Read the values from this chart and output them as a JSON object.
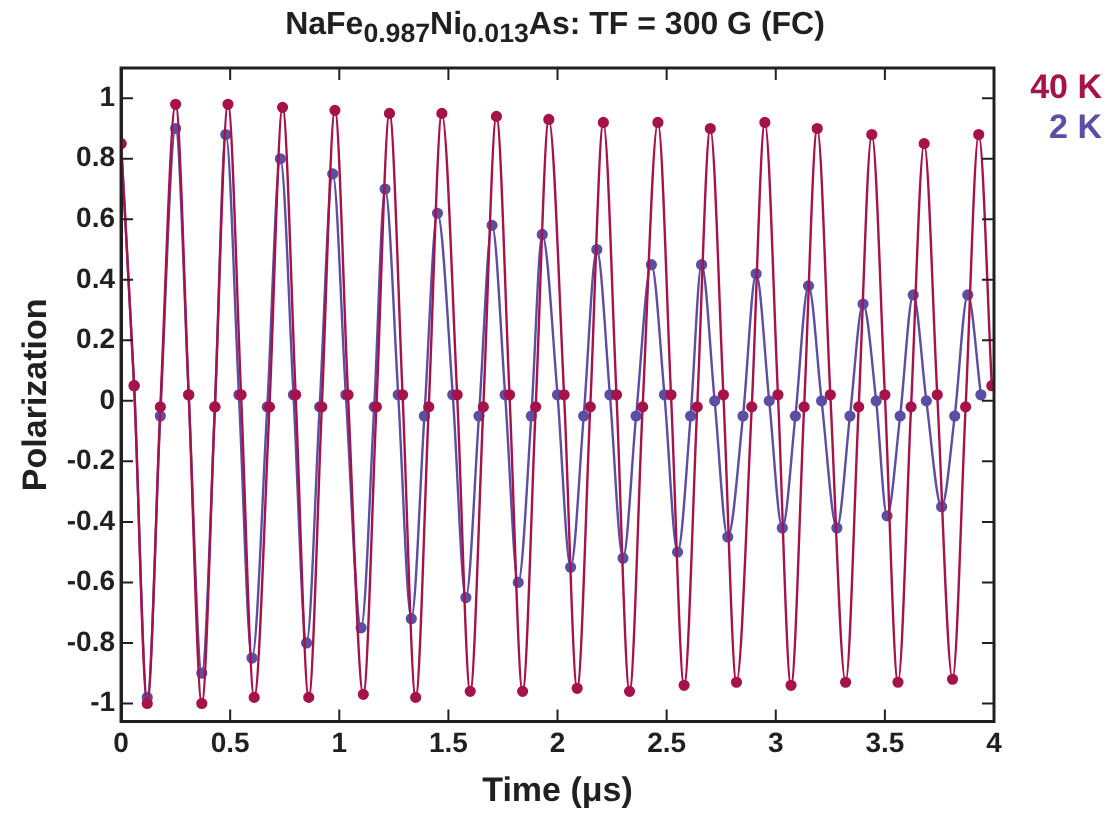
{
  "chart_data": {
    "type": "line",
    "title": "NaFe$_{0.987}$Ni$_{0.013}$As: TF = 300 G (FC)",
    "xlabel": "Time (μs)",
    "ylabel": "Polarization",
    "xlim": [
      0,
      4
    ],
    "xticks": [
      0,
      0.5,
      1,
      1.5,
      2,
      2.5,
      3,
      3.5,
      4
    ],
    "ylim": [
      -1.06,
      1.1
    ],
    "yticks": [
      -1,
      -0.8,
      -0.6,
      -0.4,
      -0.2,
      0,
      0.2,
      0.4,
      0.6,
      0.8,
      1
    ],
    "grid": false,
    "legend": "top right",
    "marker": "circle",
    "line_style": "solid",
    "series": [
      {
        "name": "40 K",
        "color": "#a6124a",
        "x": [
          0,
          0.06,
          0.12,
          0.18,
          0.25,
          0.31,
          0.37,
          0.43,
          0.49,
          0.55,
          0.61,
          0.68,
          0.74,
          0.8,
          0.86,
          0.92,
          0.98,
          1.04,
          1.11,
          1.17,
          1.23,
          1.29,
          1.35,
          1.41,
          1.47,
          1.54,
          1.6,
          1.66,
          1.72,
          1.78,
          1.84,
          1.9,
          1.96,
          2.03,
          2.09,
          2.15,
          2.21,
          2.27,
          2.33,
          2.39,
          2.46,
          2.52,
          2.58,
          2.64,
          2.7,
          2.76,
          2.82,
          2.89,
          2.95,
          3.01,
          3.07,
          3.13,
          3.19,
          3.25,
          3.32,
          3.38,
          3.44,
          3.5,
          3.56,
          3.62,
          3.68,
          3.74,
          3.81,
          3.87,
          3.93,
          3.99
        ],
        "values": [
          0.85,
          0.05,
          -1,
          -0.02,
          0.98,
          0.02,
          -1,
          -0.02,
          0.98,
          0.02,
          -0.98,
          -0.02,
          0.97,
          0.02,
          -0.98,
          -0.02,
          0.96,
          0.02,
          -0.97,
          -0.02,
          0.95,
          0.02,
          -0.98,
          -0.02,
          0.95,
          0.02,
          -0.96,
          -0.02,
          0.94,
          0.02,
          -0.96,
          -0.02,
          0.93,
          0.02,
          -0.95,
          -0.02,
          0.92,
          0.02,
          -0.96,
          -0.02,
          0.92,
          0.02,
          -0.94,
          -0.02,
          0.9,
          0.02,
          -0.93,
          -0.02,
          0.92,
          0.02,
          -0.94,
          -0.02,
          0.9,
          0.02,
          -0.93,
          -0.02,
          0.88,
          0.02,
          -0.93,
          -0.02,
          0.85,
          0.02,
          -0.92,
          -0.02,
          0.88,
          0.05
        ]
      },
      {
        "name": "2 K",
        "color": "#5b4ea3",
        "x": [
          0,
          0.06,
          0.12,
          0.18,
          0.25,
          0.31,
          0.37,
          0.43,
          0.48,
          0.54,
          0.6,
          0.67,
          0.73,
          0.79,
          0.85,
          0.91,
          0.97,
          1.03,
          1.1,
          1.16,
          1.21,
          1.27,
          1.33,
          1.39,
          1.45,
          1.52,
          1.58,
          1.64,
          1.7,
          1.76,
          1.82,
          1.88,
          1.93,
          2,
          2.06,
          2.12,
          2.18,
          2.24,
          2.3,
          2.36,
          2.43,
          2.49,
          2.55,
          2.61,
          2.66,
          2.72,
          2.78,
          2.85,
          2.91,
          2.97,
          3.03,
          3.09,
          3.15,
          3.21,
          3.28,
          3.34,
          3.4,
          3.46,
          3.51,
          3.57,
          3.63,
          3.69,
          3.76,
          3.82,
          3.88,
          3.94
        ],
        "values": [
          0.85,
          0.05,
          -0.98,
          -0.05,
          0.9,
          0.02,
          -0.9,
          -0.02,
          0.88,
          0.02,
          -0.85,
          -0.02,
          0.8,
          0.02,
          -0.8,
          -0.02,
          0.75,
          0.02,
          -0.75,
          -0.02,
          0.7,
          0.02,
          -0.72,
          -0.05,
          0.62,
          0.02,
          -0.65,
          -0.05,
          0.58,
          0.02,
          -0.6,
          -0.05,
          0.55,
          0.02,
          -0.55,
          -0.05,
          0.5,
          0.02,
          -0.52,
          -0.05,
          0.45,
          0.02,
          -0.5,
          -0.05,
          0.45,
          0,
          -0.45,
          -0.05,
          0.42,
          0,
          -0.42,
          -0.05,
          0.38,
          0,
          -0.42,
          -0.05,
          0.32,
          0,
          -0.38,
          -0.05,
          0.35,
          0,
          -0.35,
          -0.05,
          0.35,
          0.02
        ]
      }
    ]
  }
}
